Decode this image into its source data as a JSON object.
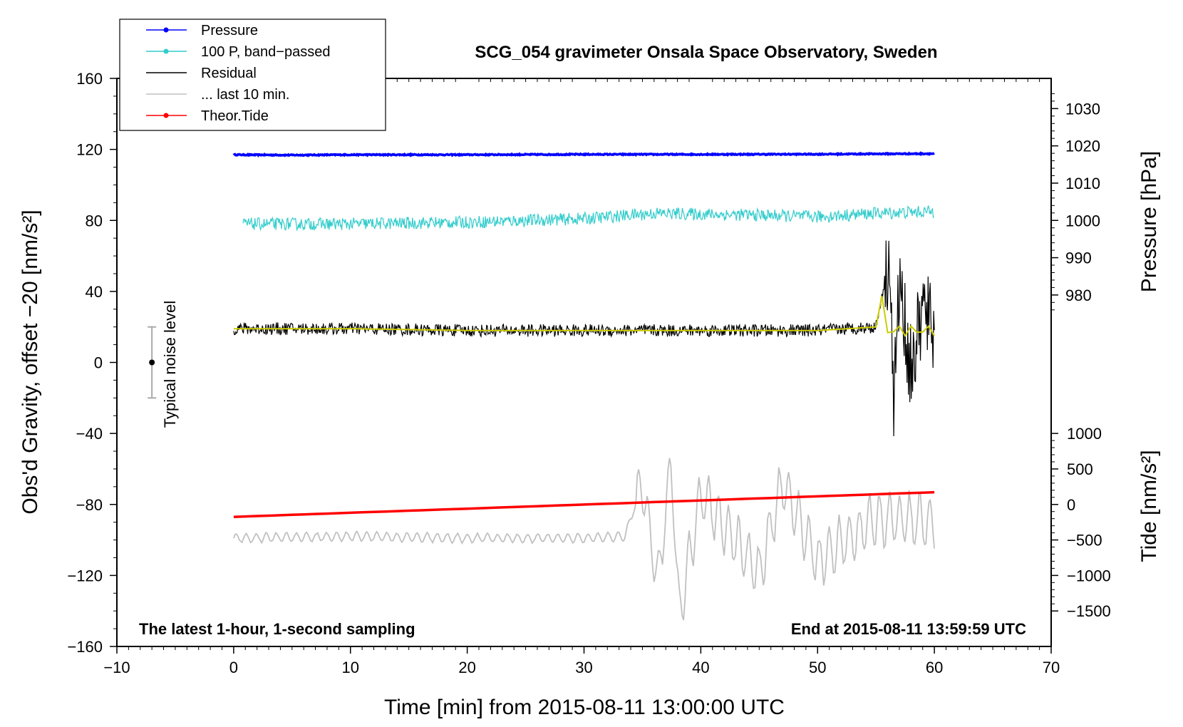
{
  "chart_data": {
    "type": "line",
    "title": "SCG_054 gravimeter Onsala Space Observatory, Sweden",
    "xlabel": "Time [min] from 2015-08-11 13:00:00 UTC",
    "ylabel_left": "Obs'd Gravity, offset −20 [nm/s²]",
    "ylabel_right_top": "Pressure [hPa]",
    "ylabel_right_bottom": "Tide [nm/s²]",
    "xlim": [
      -10,
      70
    ],
    "ylim": [
      -160,
      160
    ],
    "x_ticks": [
      "−10",
      "0",
      "10",
      "20",
      "30",
      "40",
      "50",
      "60",
      "70"
    ],
    "y_ticks": [
      "160",
      "120",
      "80",
      "40",
      "0",
      "−40",
      "−80",
      "−120",
      "−160"
    ],
    "pressure_ticks": [
      "1030",
      "1020",
      "1010",
      "1000",
      "990",
      "980"
    ],
    "tide_ticks": [
      "1000",
      "500",
      "0",
      "−500",
      "−1000",
      "−1500"
    ],
    "pressure_scale": {
      "hpa_ref": 1000,
      "gravity_ref": 80,
      "gravity_per_hpa": 2.1
    },
    "tide_scale": {
      "tide_ref": 0,
      "gravity_ref": -80,
      "gravity_per_unit": 0.04
    },
    "annotation_left": "The latest 1-hour, 1-second sampling",
    "annotation_right": "End at 2015-08-11 13:59:59 UTC",
    "noise_label": "Typical noise level",
    "noise_bar": {
      "x": -7,
      "center": 0,
      "low": -20,
      "high": 20
    },
    "legend": [
      {
        "label": "Pressure",
        "color": "#0000ff",
        "marker": true
      },
      {
        "label": "100 P, band−passed",
        "color": "#33cccc",
        "marker": true
      },
      {
        "label": "Residual",
        "color": "#000000",
        "marker": false
      },
      {
        "label": "... last 10 min.",
        "color": "#c0c0c0",
        "marker": false
      },
      {
        "label": "Theor.Tide",
        "color": "#ff0000",
        "marker": true
      }
    ],
    "series": [
      {
        "name": "Pressure",
        "color": "#0000ff",
        "x": [
          0,
          5,
          10,
          20,
          30,
          40,
          50,
          55,
          60
        ],
        "y": [
          117,
          116.8,
          117,
          117,
          117.2,
          117.2,
          117.3,
          117.5,
          117.6
        ]
      },
      {
        "name": "100 P, band−passed",
        "color": "#33cccc",
        "x": [
          0.8,
          10,
          20,
          30,
          36,
          45,
          50,
          55,
          60
        ],
        "y": [
          78,
          78,
          79,
          81,
          84,
          83,
          82,
          84,
          85
        ]
      },
      {
        "name": "Residual",
        "color": "#000000",
        "x": [
          0,
          10,
          20,
          30,
          40,
          50,
          55,
          56.2,
          56.5,
          57,
          58,
          59,
          60
        ],
        "y": [
          19,
          19,
          18,
          18,
          18,
          18,
          20,
          62,
          -27,
          45,
          -5,
          30,
          18
        ]
      },
      {
        "name": "... last 10 min.",
        "color": "#c0c0c0",
        "x": [
          0,
          10,
          20,
          30,
          33.5,
          35,
          36.3,
          37.5,
          38.1,
          40,
          45,
          47,
          50,
          55,
          60
        ],
        "y": [
          -99,
          -98,
          -99,
          -99,
          -98,
          -68,
          -124,
          -55,
          -143,
          -75,
          -118,
          -68,
          -112,
          -88,
          -90
        ]
      },
      {
        "name": "Theor.Tide",
        "color": "#ff0000",
        "x": [
          0,
          60.5
        ],
        "y": [
          -87,
          -73
        ]
      }
    ]
  }
}
